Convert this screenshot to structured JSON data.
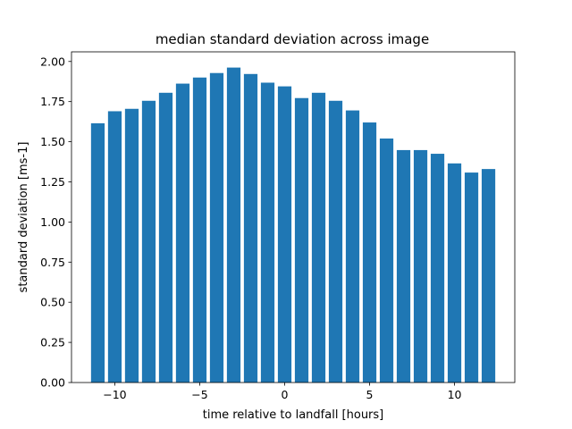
{
  "chart_data": {
    "type": "bar",
    "title": "median standard deviation across image",
    "xlabel": "time relative to landfall [hours]",
    "ylabel": "standard deviation [ms-1]",
    "x": [
      -11,
      -10,
      -9,
      -8,
      -7,
      -6,
      -5,
      -4,
      -3,
      -2,
      -1,
      0,
      1,
      2,
      3,
      4,
      5,
      6,
      7,
      8,
      9,
      10,
      11,
      12
    ],
    "values": [
      1.615,
      1.69,
      1.705,
      1.755,
      1.805,
      1.862,
      1.9,
      1.928,
      1.962,
      1.922,
      1.868,
      1.845,
      1.772,
      1.805,
      1.755,
      1.695,
      1.62,
      1.52,
      1.448,
      1.448,
      1.425,
      1.365,
      1.308,
      1.33
    ],
    "xlim": [
      -12.55,
      13.55
    ],
    "ylim": [
      0,
      2.06
    ],
    "xticks": [
      -10,
      -5,
      0,
      5,
      10
    ],
    "xtick_labels": [
      "−10",
      "−5",
      "0",
      "5",
      "10"
    ],
    "yticks": [
      0,
      0.25,
      0.5,
      0.75,
      1.0,
      1.25,
      1.5,
      1.75,
      2.0
    ],
    "ytick_labels": [
      "0.00",
      "0.25",
      "0.50",
      "0.75",
      "1.00",
      "1.25",
      "1.50",
      "1.75",
      "2.00"
    ],
    "bar_color": "#1f77b4",
    "grid": false,
    "legend": "none"
  }
}
